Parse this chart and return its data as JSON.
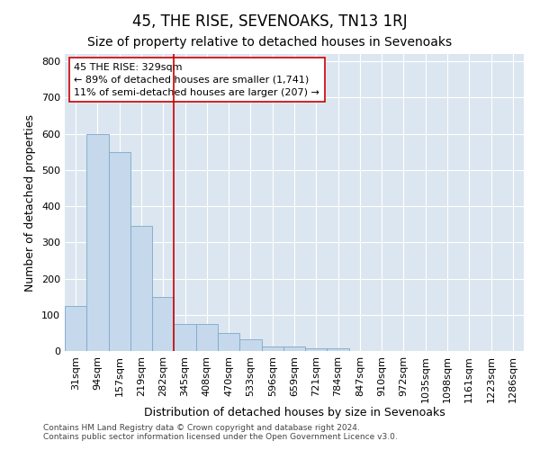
{
  "title": "45, THE RISE, SEVENOAKS, TN13 1RJ",
  "subtitle": "Size of property relative to detached houses in Sevenoaks",
  "xlabel": "Distribution of detached houses by size in Sevenoaks",
  "ylabel": "Number of detached properties",
  "categories": [
    "31sqm",
    "94sqm",
    "157sqm",
    "219sqm",
    "282sqm",
    "345sqm",
    "408sqm",
    "470sqm",
    "533sqm",
    "596sqm",
    "659sqm",
    "721sqm",
    "784sqm",
    "847sqm",
    "910sqm",
    "972sqm",
    "1035sqm",
    "1098sqm",
    "1161sqm",
    "1223sqm",
    "1286sqm"
  ],
  "values": [
    125,
    600,
    550,
    345,
    148,
    75,
    75,
    50,
    33,
    13,
    13,
    8,
    8,
    0,
    0,
    0,
    0,
    0,
    0,
    0,
    0
  ],
  "bar_color": "#c6d8eb",
  "bar_edge_color": "#7aaac8",
  "vline_x_index": 4.5,
  "vline_color": "#cc0000",
  "annotation_text": "45 THE RISE: 329sqm\n← 89% of detached houses are smaller (1,741)\n11% of semi-detached houses are larger (207) →",
  "annotation_box_color": "#ffffff",
  "annotation_box_edge": "#cc0000",
  "ylim": [
    0,
    820
  ],
  "yticks": [
    0,
    100,
    200,
    300,
    400,
    500,
    600,
    700,
    800
  ],
  "plot_bg_color": "#dce6f0",
  "fig_bg_color": "#ffffff",
  "footer_text": "Contains HM Land Registry data © Crown copyright and database right 2024.\nContains public sector information licensed under the Open Government Licence v3.0.",
  "title_fontsize": 12,
  "subtitle_fontsize": 10,
  "xlabel_fontsize": 9,
  "ylabel_fontsize": 9,
  "tick_fontsize": 8,
  "footer_fontsize": 6.5
}
